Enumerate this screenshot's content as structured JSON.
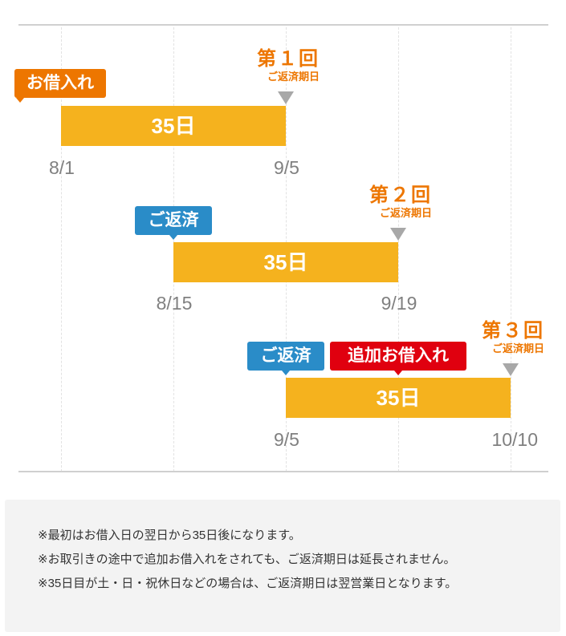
{
  "rows": [
    {
      "tags": [
        {
          "label": "お借入れ",
          "color": "#ed7600"
        }
      ],
      "duration": "35日",
      "start_date": "8/1",
      "end_date": "9/5",
      "due": {
        "round": "第１回",
        "sub": "ご返済期日"
      }
    },
    {
      "tags": [
        {
          "label": "ご返済",
          "color": "#2a8cc8"
        }
      ],
      "duration": "35日",
      "start_date": "8/15",
      "end_date": "9/19",
      "due": {
        "round": "第２回",
        "sub": "ご返済期日"
      }
    },
    {
      "tags": [
        {
          "label": "ご返済",
          "color": "#2a8cc8"
        },
        {
          "label": "追加お借入れ",
          "color": "#e0000f"
        }
      ],
      "duration": "35日",
      "start_date": "9/5",
      "end_date": "10/10",
      "due": {
        "round": "第３回",
        "sub": "ご返済期日"
      }
    }
  ],
  "colors": {
    "bar": "#f5b21e",
    "marker": "#a8a8a8",
    "due_text": "#ed7600"
  },
  "notes": [
    "※最初はお借入日の翌日から35日後になります。",
    "※お取引きの途中で追加お借入れをされても、ご返済期日は延長されません。",
    "※35日目が土・日・祝休日などの場合は、ご返済期日は翌営業日となります。"
  ]
}
